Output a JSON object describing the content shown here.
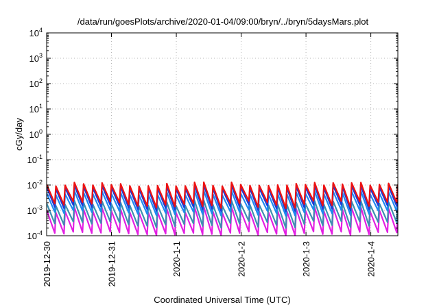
{
  "chart_data": {
    "type": "line",
    "title": "/data/run/goesPlots/archive/2020-01-04/09:00/bryn/../bryn/5daysMars.plot",
    "xlabel": "Coordinated Universal Time (UTC)",
    "ylabel": "cGy/day",
    "yscale": "log",
    "ylim": [
      0.0001,
      10000
    ],
    "xlim": [
      "2019-12-30 00:00",
      "2020-01-04 10:00"
    ],
    "y_ticks": [
      {
        "base": "10",
        "exp": "-4",
        "value": 0.0001
      },
      {
        "base": "10",
        "exp": "-3",
        "value": 0.001
      },
      {
        "base": "10",
        "exp": "-2",
        "value": 0.01
      },
      {
        "base": "10",
        "exp": "-1",
        "value": 0.1
      },
      {
        "base": "10",
        "exp": "0",
        "value": 1
      },
      {
        "base": "10",
        "exp": "1",
        "value": 10
      },
      {
        "base": "10",
        "exp": "2",
        "value": 100
      },
      {
        "base": "10",
        "exp": "3",
        "value": 1000
      },
      {
        "base": "10",
        "exp": "4",
        "value": 10000
      }
    ],
    "x_ticks": [
      {
        "label": "2019-12-30",
        "time": "2019-12-30 00:00"
      },
      {
        "label": "2019-12-31",
        "time": "2019-12-31 00:00"
      },
      {
        "label": "2020-1-1",
        "time": "2020-01-01 00:00"
      },
      {
        "label": "2020-1-2",
        "time": "2020-01-02 00:00"
      },
      {
        "label": "2020-1-3",
        "time": "2020-01-03 00:00"
      },
      {
        "label": "2020-1-4",
        "time": "2020-01-04 00:00"
      }
    ],
    "grid": true,
    "legend": "none",
    "series": [
      {
        "color": "#ee1111",
        "peak_range": [
          0.009,
          0.013
        ],
        "trough_range": [
          0.0012,
          0.0025
        ]
      },
      {
        "color": "#1d3bd6",
        "peak_range": [
          0.007,
          0.01
        ],
        "trough_range": [
          0.0009,
          0.0018
        ]
      },
      {
        "color": "#1e88f0",
        "peak_range": [
          0.004,
          0.006
        ],
        "trough_range": [
          0.0006,
          0.0011
        ]
      },
      {
        "color": "#3d8fb0",
        "peak_range": [
          0.0015,
          0.0025
        ],
        "trough_range": [
          0.0002,
          0.0004
        ]
      },
      {
        "color": "#e31ee3",
        "peak_range": [
          0.0008,
          0.0014
        ],
        "trough_range": [
          0.0001,
          0.00015
        ]
      }
    ]
  }
}
